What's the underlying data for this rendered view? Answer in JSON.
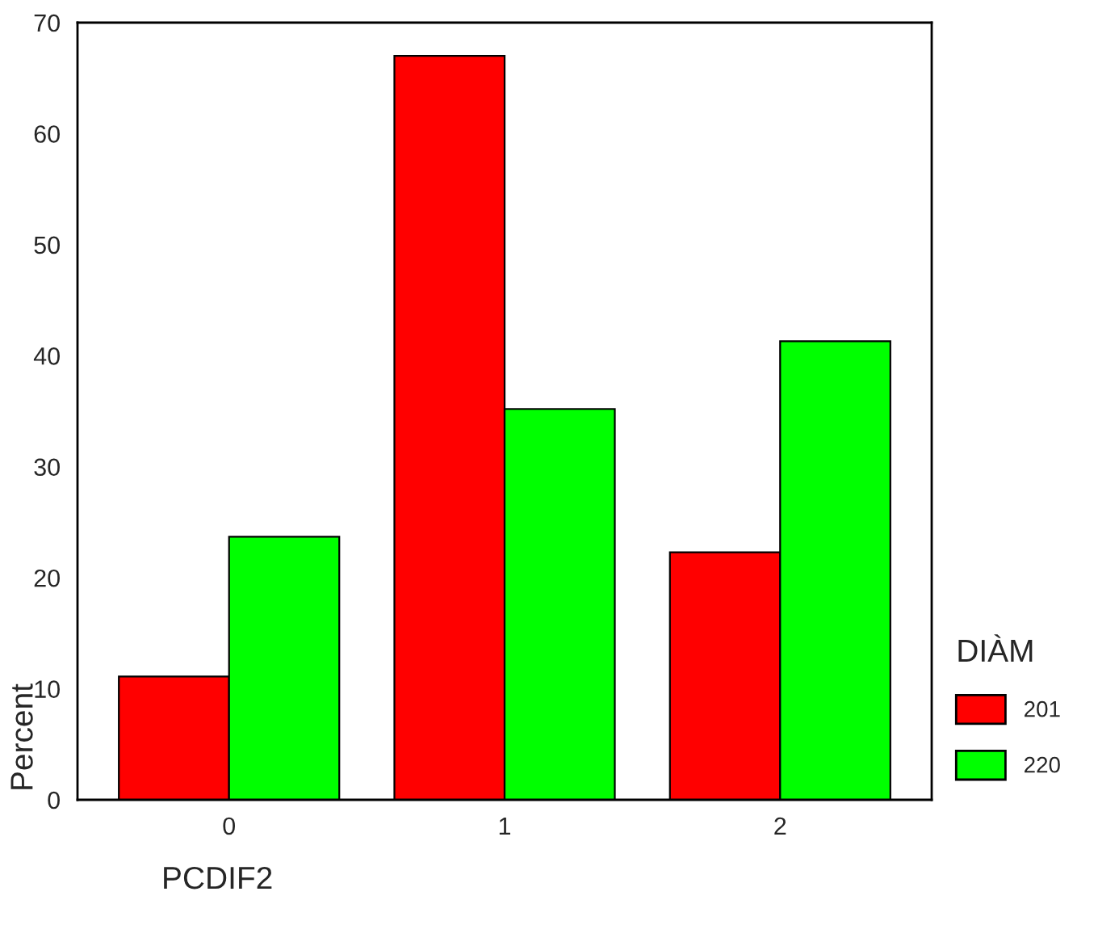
{
  "chart_data": {
    "type": "bar",
    "xlabel": "PCDIF2",
    "ylabel": "Percent",
    "legend_title": "DIÀM",
    "categories": [
      "0",
      "1",
      "2"
    ],
    "series": [
      {
        "name": "201",
        "color": "#ff0000",
        "values": [
          11.1,
          67.0,
          22.3
        ]
      },
      {
        "name": "220",
        "color": "#00ff00",
        "values": [
          23.7,
          35.2,
          41.3
        ]
      }
    ],
    "ylim": [
      0,
      70
    ],
    "yticks": [
      0,
      10,
      20,
      30,
      40,
      50,
      60,
      70
    ],
    "grid": false,
    "legend": "right"
  }
}
